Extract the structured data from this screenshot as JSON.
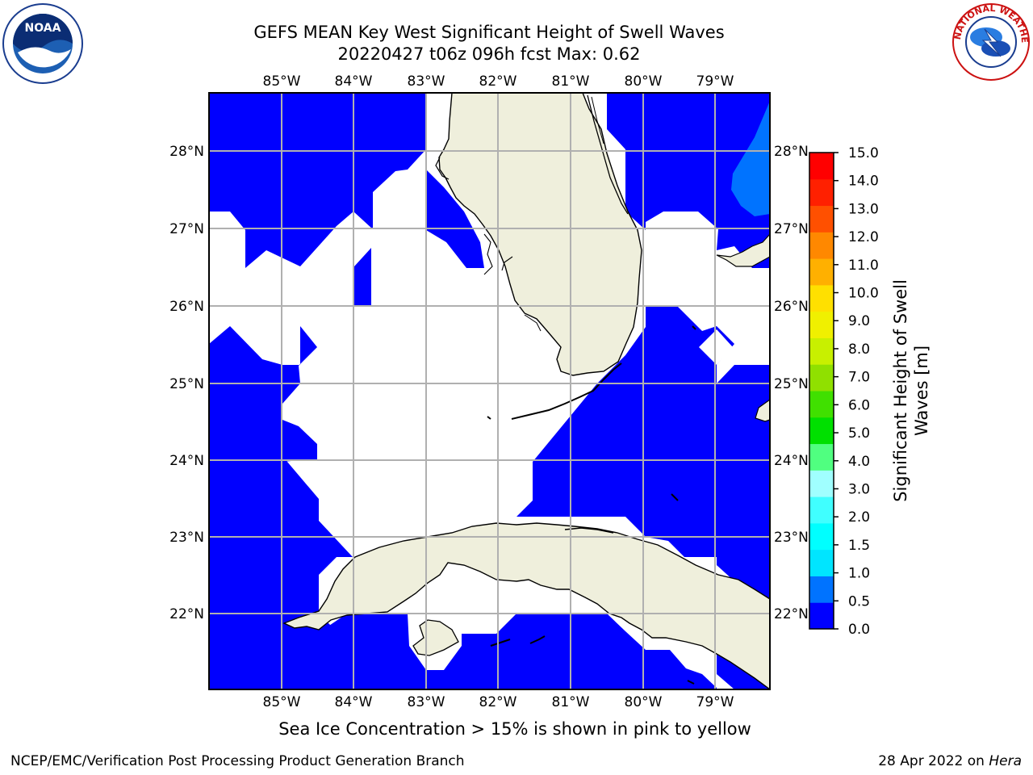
{
  "header": {
    "title_line1": "GEFS MEAN Key West Significant Height of Swell Waves",
    "title_line2": "20220427 t06z 096h fcst   Max: 0.62"
  },
  "map": {
    "lon_labels": [
      "85°W",
      "84°W",
      "83°W",
      "82°W",
      "81°W",
      "80°W",
      "79°W"
    ],
    "lat_labels": [
      "28°N",
      "27°N",
      "26°N",
      "25°N",
      "24°N",
      "23°N",
      "22°N"
    ],
    "colors": {
      "ocean_low": "#0000ff",
      "ocean_mid": "#0073ff",
      "land": "#efefdc",
      "grid": "#b0b0b0"
    }
  },
  "colorbar": {
    "title_line1": "Significant Height of Swell",
    "title_line2": "Waves [m]",
    "tick_labels": [
      "0.0",
      "0.5",
      "1.0",
      "1.5",
      "2.0",
      "3.0",
      "4.0",
      "5.0",
      "6.0",
      "7.0",
      "8.0",
      "9.0",
      "10.0",
      "11.0",
      "12.0",
      "13.0",
      "14.0",
      "15.0"
    ],
    "colors": [
      "#0000ff",
      "#0073ff",
      "#00e5ff",
      "#00ffff",
      "#40ffff",
      "#a0ffff",
      "#50ff80",
      "#00e000",
      "#40e000",
      "#90e000",
      "#c8f000",
      "#f0f000",
      "#ffe000",
      "#ffb000",
      "#ff8800",
      "#ff5000",
      "#ff2000",
      "#ff0000"
    ]
  },
  "note": "Sea Ice Concentration > 15% is shown in pink to yellow",
  "footer": {
    "left": "NCEP/EMC/Verification Post Processing Product Generation Branch",
    "right_date": "28 Apr 2022 on",
    "right_host": "Hera"
  },
  "logos": {
    "noaa_text": "NOAA",
    "nws_text": "NATIONAL WEATHER SERVICE"
  }
}
